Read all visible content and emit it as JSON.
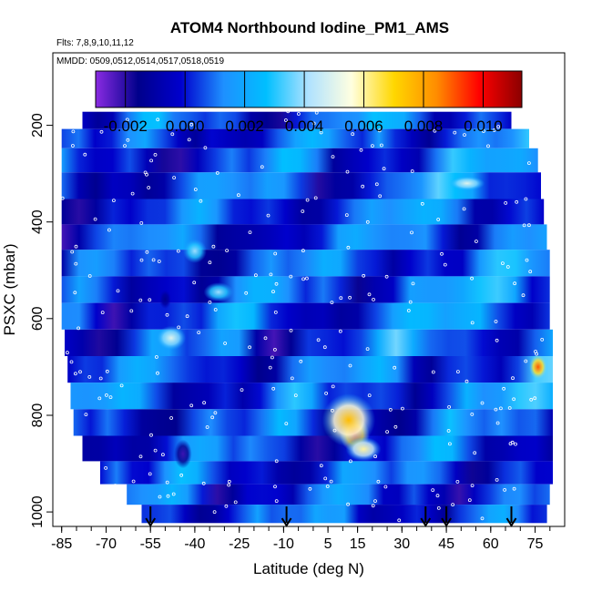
{
  "chart_data": {
    "type": "heatmap",
    "title": "ATOM4 Northbound Iodine_PM1_AMS",
    "subtitle_flights": "Flts: 7,8,9,10,11,12",
    "subtitle_dates": "MMDD: 0509,0512,0514,0517,0518,0519",
    "xlabel": "Latitude (deg N)",
    "ylabel": "PSXC (mbar)",
    "xlim": [
      -88,
      85
    ],
    "ylim": [
      1030,
      50
    ],
    "x_ticks": [
      -85,
      -70,
      -55,
      -40,
      -25,
      -10,
      5,
      15,
      30,
      45,
      60,
      75
    ],
    "y_ticks": [
      200,
      400,
      600,
      800,
      1000
    ],
    "colorbar": {
      "min": -0.003,
      "max": 0.0113,
      "ticks": [
        -0.002,
        0.0,
        0.002,
        0.004,
        0.006,
        0.008,
        0.01
      ],
      "tick_labels": [
        "-0.002",
        "0.000",
        "0.002",
        "0.004",
        "0.006",
        "0.008",
        "0.010"
      ],
      "colors": [
        "#8a2be2",
        "#00008b",
        "#0000cd",
        "#1e90ff",
        "#00bfff",
        "#b0e2ff",
        "#ffffe0",
        "#ffd700",
        "#ff8c00",
        "#ff0000",
        "#8b0000"
      ]
    },
    "layers": [
      {
        "p": 190,
        "x": [
          -78,
          67
        ]
      },
      {
        "p": 225,
        "x": [
          -85,
          73
        ]
      },
      {
        "p": 270,
        "x": [
          -85,
          76
        ]
      },
      {
        "p": 325,
        "x": [
          -85,
          77
        ]
      },
      {
        "p": 380,
        "x": [
          -85,
          78
        ]
      },
      {
        "p": 430,
        "x": [
          -85,
          79
        ]
      },
      {
        "p": 485,
        "x": [
          -85,
          80
        ]
      },
      {
        "p": 540,
        "x": [
          -85,
          80
        ]
      },
      {
        "p": 595,
        "x": [
          -85,
          80
        ]
      },
      {
        "p": 650,
        "x": [
          -84,
          81
        ]
      },
      {
        "p": 705,
        "x": [
          -83,
          81
        ]
      },
      {
        "p": 760,
        "x": [
          -82,
          81
        ]
      },
      {
        "p": 815,
        "x": [
          -81,
          81
        ]
      },
      {
        "p": 870,
        "x": [
          -78,
          81
        ]
      },
      {
        "p": 920,
        "x": [
          -72,
          81
        ]
      },
      {
        "p": 965,
        "x": [
          -63,
          80
        ]
      },
      {
        "p": 1005,
        "x": [
          -58,
          79
        ]
      }
    ],
    "hotspots": [
      {
        "x": 14,
        "p": 840,
        "value": 0.0105,
        "wx": 5,
        "wp": 35
      },
      {
        "x": 12,
        "p": 810,
        "value": 0.0075,
        "wx": 9,
        "wp": 55
      },
      {
        "x": 17,
        "p": 870,
        "value": 0.006,
        "wx": 6,
        "wp": 25
      },
      {
        "x": -48,
        "p": 640,
        "value": 0.005,
        "wx": 5,
        "wp": 25
      },
      {
        "x": -40,
        "p": 460,
        "value": 0.004,
        "wx": 4,
        "wp": 25
      },
      {
        "x": -32,
        "p": 545,
        "value": 0.004,
        "wx": 5,
        "wp": 20
      },
      {
        "x": 76,
        "p": 700,
        "value": 0.009,
        "wx": 3,
        "wp": 25
      },
      {
        "x": 52,
        "p": 320,
        "value": 0.005,
        "wx": 6,
        "wp": 15
      },
      {
        "x": -44,
        "p": 880,
        "value": -0.0022,
        "wx": 3,
        "wp": 30
      },
      {
        "x": -50,
        "p": 560,
        "value": -0.0015,
        "wx": 2,
        "wp": 20
      }
    ],
    "flight_arrows_lat": [
      -55,
      -9,
      38,
      45,
      67
    ]
  }
}
